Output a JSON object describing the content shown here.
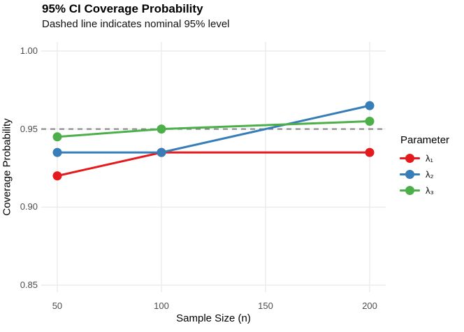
{
  "header": {
    "title": "95% CI Coverage Probability",
    "subtitle": "Dashed line indicates nominal 95% level"
  },
  "chart_data": {
    "type": "line",
    "title": "95% CI Coverage Probability",
    "subtitle": "Dashed line indicates nominal 95% level",
    "xlabel": "Sample Size (n)",
    "ylabel": "Coverage Probability",
    "x": [
      50,
      100,
      200
    ],
    "series": [
      {
        "name": "λ₁",
        "color": "#E41A1C",
        "values": [
          0.92,
          0.935,
          0.935
        ]
      },
      {
        "name": "λ₂",
        "color": "#377EB8",
        "values": [
          0.935,
          0.935,
          0.965
        ]
      },
      {
        "name": "λ₃",
        "color": "#4DAF4A",
        "values": [
          0.945,
          0.95,
          0.955
        ]
      }
    ],
    "reference_line": {
      "y": 0.95,
      "style": "dashed",
      "color": "#7F7F7F",
      "meaning": "nominal 95% level"
    },
    "x_ticks": [
      50,
      100,
      150,
      200
    ],
    "x_tick_labels": [
      "50",
      "100",
      "150",
      "200"
    ],
    "y_ticks": [
      0.85,
      0.9,
      0.95,
      1.0
    ],
    "y_tick_labels": [
      "0.85",
      "0.90",
      "0.95",
      "1.00"
    ],
    "xlim": [
      42.3,
      207.7
    ],
    "ylim": [
      0.8455,
      1.0058
    ],
    "grid": "major",
    "legend_position": "right"
  },
  "legend": {
    "title": "Parameter",
    "items": [
      {
        "label": "λ₁",
        "color": "#E41A1C"
      },
      {
        "label": "λ₂",
        "color": "#377EB8"
      },
      {
        "label": "λ₃",
        "color": "#4DAF4A"
      }
    ]
  },
  "colors": {
    "grid": "#EBEBEB",
    "tick_label": "#4D4D4D",
    "title_text": "#000000",
    "background": "#FFFFFF"
  }
}
